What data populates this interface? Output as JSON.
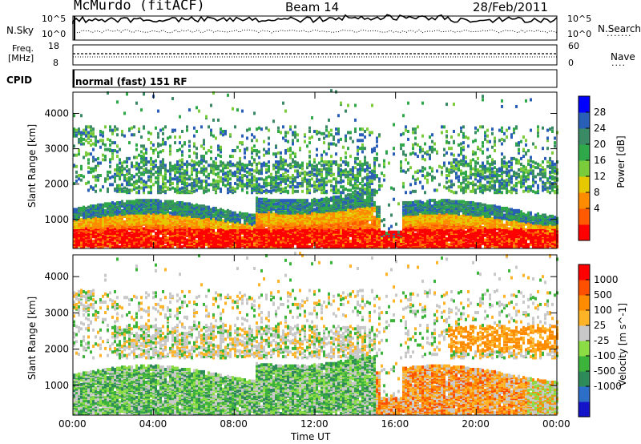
{
  "header": {
    "station": "McMurdo (fitACF)",
    "beam": "Beam 14",
    "date": "28/Feb/2011"
  },
  "top_panels": {
    "nsky_label": "N.Sky",
    "nsky_ticks": [
      "10^5",
      "10^0"
    ],
    "nsearch_label": "N.Search",
    "nsearch_ticks": [
      "10^5",
      "10^0"
    ],
    "freq_label_line1": "Freq.",
    "freq_label_line2": "[MHz]",
    "freq_ticks": [
      "18",
      "8"
    ],
    "nave_label": "Nave",
    "nave_ticks": [
      "60",
      "0"
    ],
    "cpid_label": "CPID",
    "cpid_text": "normal (fast) 151 RF"
  },
  "colors": {
    "power": [
      "#0000ff",
      "#2a5fb8",
      "#3a8a66",
      "#2fa84a",
      "#7acc3a",
      "#e6c800",
      "#ff8c00",
      "#ff5a00",
      "#ff0000"
    ],
    "velocity": [
      "#1414c8",
      "#2d6ec8",
      "#2f8a5a",
      "#3cb43c",
      "#8cdc46",
      "#c8c8c8",
      "#ffb428",
      "#ff8c00",
      "#ff5000",
      "#ff0000"
    ]
  },
  "chart_data": [
    {
      "type": "heatmap",
      "title": "Power",
      "ylabel": "Slant Range [km]",
      "xlabel": "",
      "ylim": [
        180,
        4600
      ],
      "yticks": [
        "4000",
        "3000",
        "2000",
        "1000"
      ],
      "ytick_values": [
        4000,
        3000,
        2000,
        1000
      ],
      "colorbar_label": "Power [dB]",
      "colorbar_ticks": [
        "28",
        "24",
        "20",
        "16",
        "12",
        "8",
        "4"
      ],
      "colorbar_range": [
        0,
        32
      ]
    },
    {
      "type": "heatmap",
      "title": "Velocity",
      "ylabel": "Slant Range [km]",
      "xlabel": "Time UT",
      "ylim": [
        180,
        4600
      ],
      "yticks": [
        "4000",
        "3000",
        "2000",
        "1000"
      ],
      "ytick_values": [
        4000,
        3000,
        2000,
        1000
      ],
      "xticks": [
        "00:00",
        "04:00",
        "08:00",
        "12:00",
        "16:00",
        "20:00",
        "00:00"
      ],
      "xtick_hours": [
        0,
        4,
        8,
        12,
        16,
        20,
        24
      ],
      "colorbar_label": "Velocity [m s^-1]",
      "colorbar_ticks": [
        "1000",
        "500",
        "100",
        "25",
        "-25",
        "-100",
        "-500",
        "-1000"
      ]
    }
  ]
}
